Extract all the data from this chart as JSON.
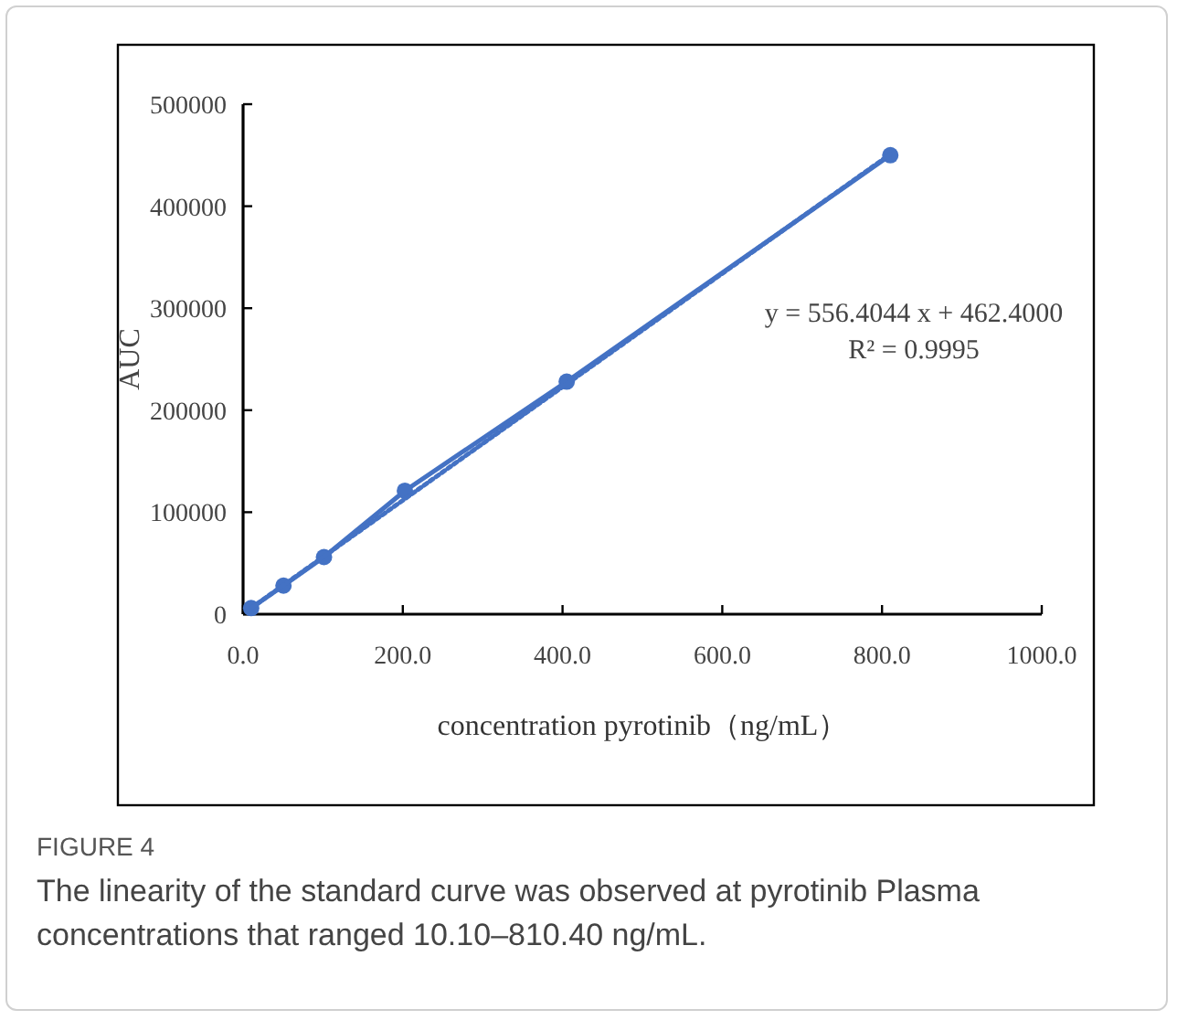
{
  "chart_data": {
    "type": "line",
    "xlabel": "concentration pyrotinib（ng/mL）",
    "ylabel": "AUC",
    "xlim": [
      0,
      1000
    ],
    "ylim": [
      0,
      500000
    ],
    "xticks": [
      {
        "value": 0,
        "label": "0.0"
      },
      {
        "value": 200,
        "label": "200.0"
      },
      {
        "value": 400,
        "label": "400.0"
      },
      {
        "value": 600,
        "label": "600.0"
      },
      {
        "value": 800,
        "label": "800.0"
      },
      {
        "value": 1000,
        "label": "1000.0"
      }
    ],
    "yticks": [
      0,
      100000,
      200000,
      300000,
      400000,
      500000
    ],
    "series": [
      {
        "x": [
          10.1,
          50.6,
          101.3,
          202.6,
          405.2,
          810.4
        ],
        "values": [
          6000,
          28000,
          56000,
          121000,
          228000,
          450000
        ],
        "color": "#4472c4",
        "marker": "circle",
        "line_style": "solid"
      },
      {
        "x": [
          10.1,
          810.4
        ],
        "values": [
          6000,
          451000
        ],
        "color": "#4472c4",
        "marker": "none",
        "line_style": "dotted"
      }
    ],
    "annotations": [
      "y = 556.4044 x + 462.4000",
      "R² = 0.9995",
      "FIGURE 4",
      "The linearity of the standard curve was observed at pyrotinib Plasma concentrations that ranged 10.10–810.40 ng/mL."
    ]
  }
}
